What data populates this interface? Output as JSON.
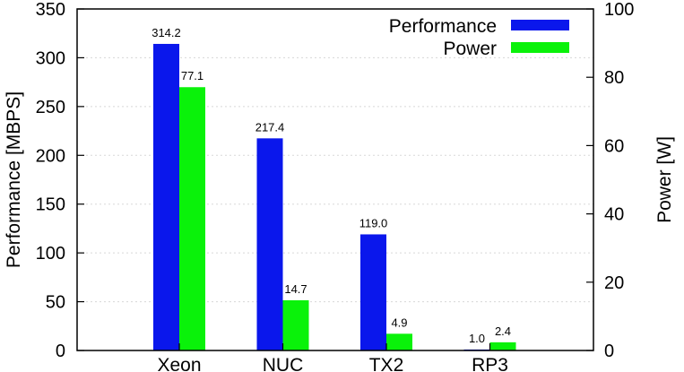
{
  "chart_data": {
    "type": "bar",
    "categories": [
      "Xeon",
      "NUC",
      "TX2",
      "RP3"
    ],
    "series": [
      {
        "name": "Performance",
        "axis": "left",
        "color": "#0a17ec",
        "values": [
          314.2,
          217.4,
          119.0,
          1.0
        ],
        "labels": [
          "314.2",
          "217.4",
          "119.0",
          "1.0"
        ]
      },
      {
        "name": "Power",
        "axis": "right",
        "color": "#0af20a",
        "values": [
          77.1,
          14.7,
          4.9,
          2.4
        ],
        "labels": [
          "77.1",
          "14.7",
          "4.9",
          "2.4"
        ]
      }
    ],
    "ylabel": "Performance [MBPS]",
    "ylabel_right": "Power [W]",
    "ylim": [
      0,
      350
    ],
    "ylim_right": [
      0,
      100
    ],
    "yticks": [
      "0",
      "50",
      "100",
      "150",
      "200",
      "250",
      "300",
      "350"
    ],
    "yticks_right": [
      "0",
      "20",
      "40",
      "60",
      "80",
      "100"
    ],
    "grid": true,
    "legend_position": "top-right"
  }
}
